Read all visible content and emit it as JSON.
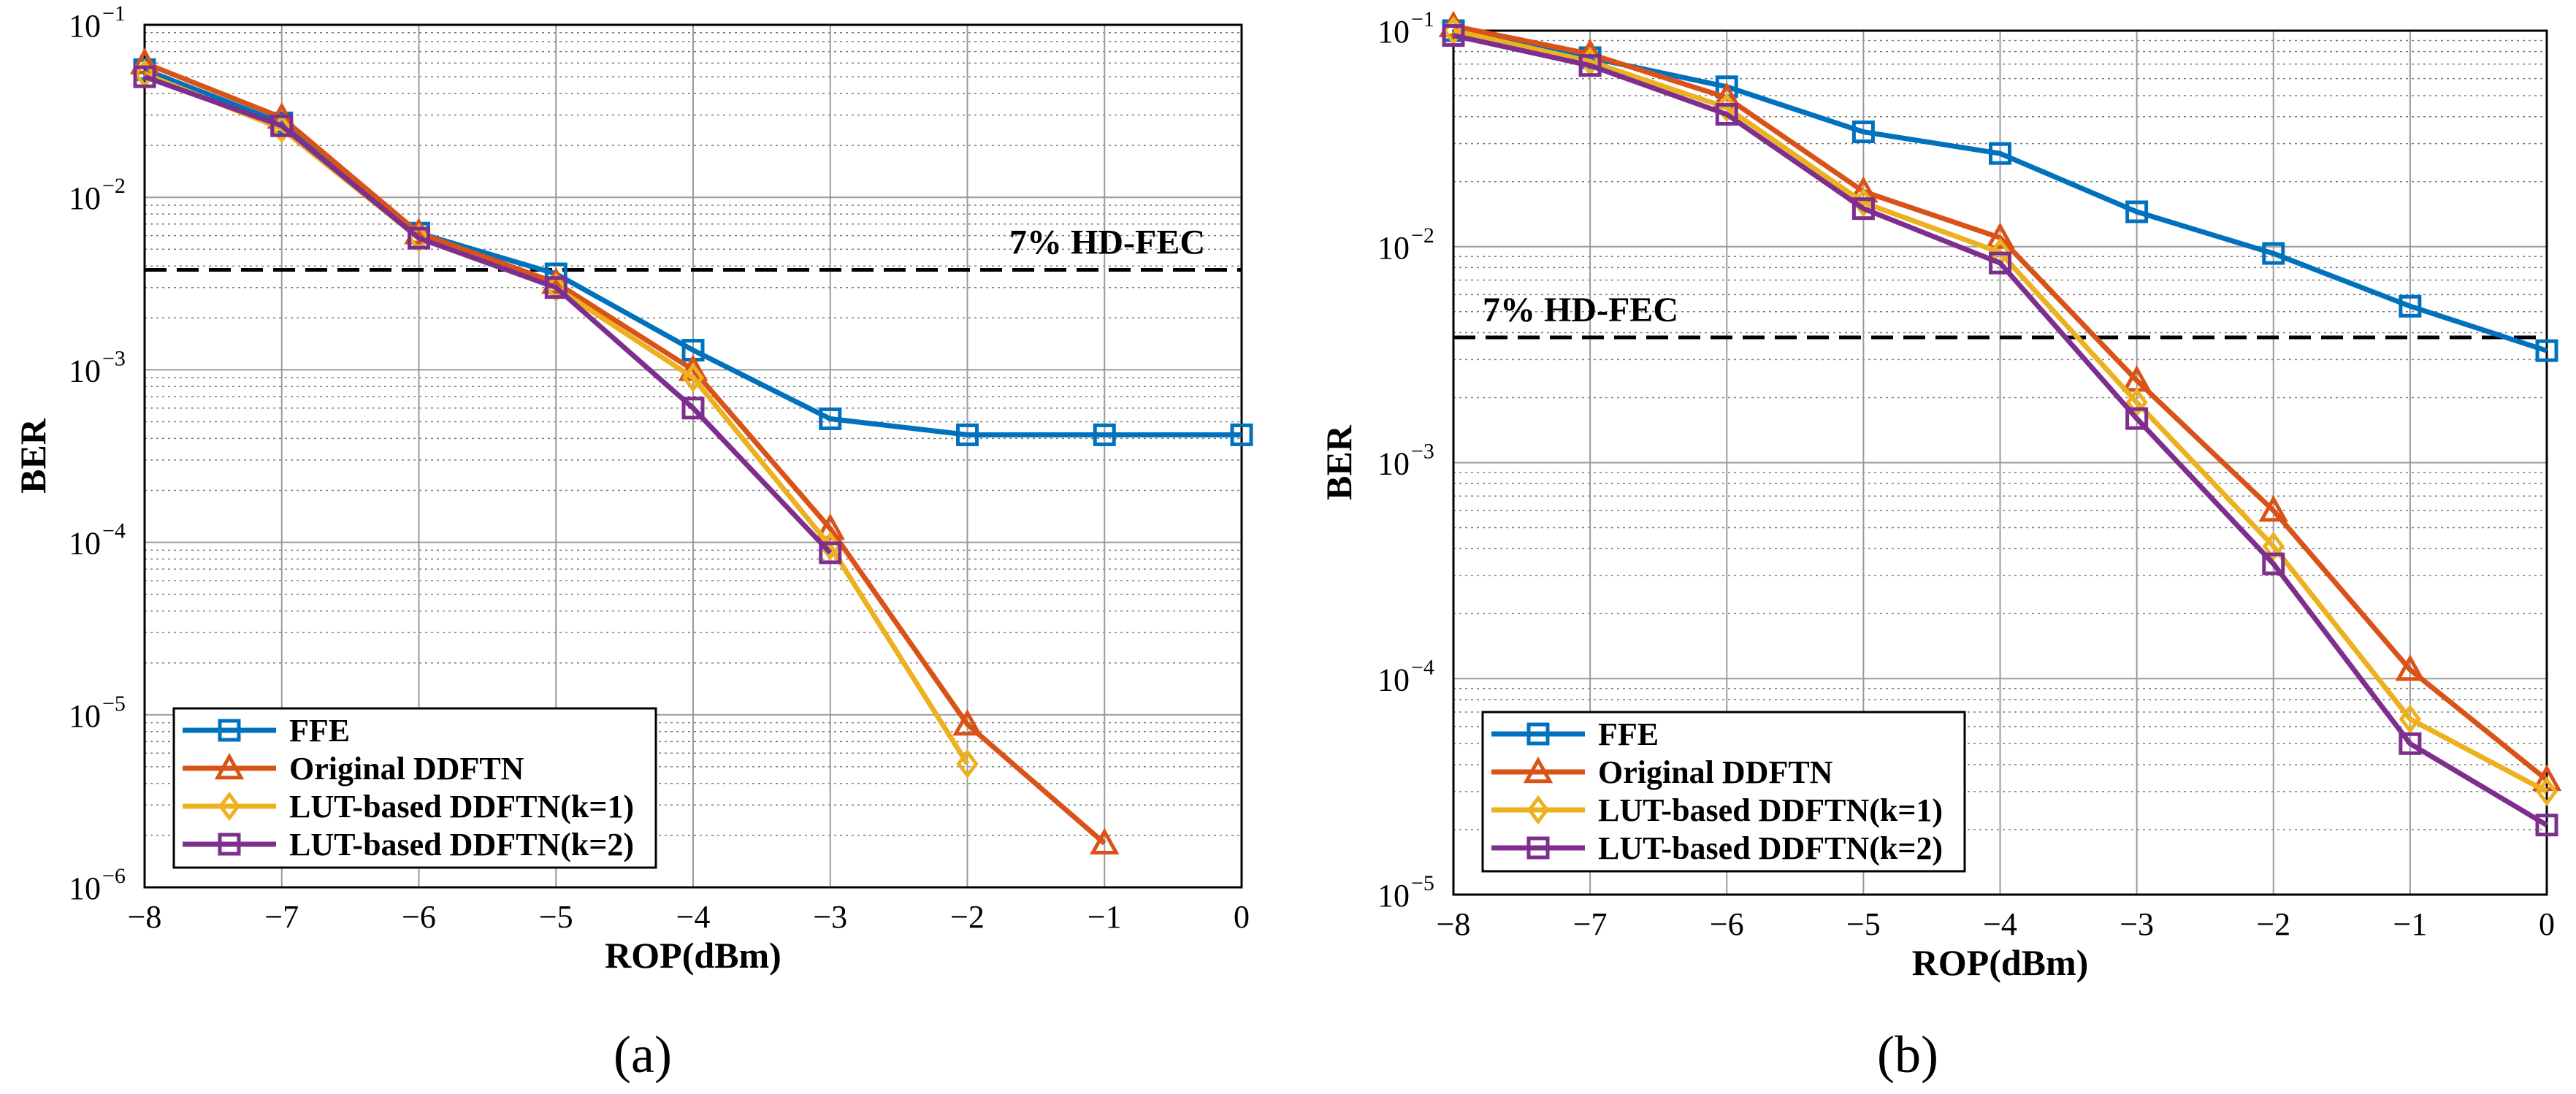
{
  "figure": {
    "captions": [
      "(a)",
      "(b)"
    ]
  },
  "colors": {
    "ffe": "#0072BD",
    "original": "#D95319",
    "lut_k1": "#EDB120",
    "lut_k2": "#7E2F8E",
    "threshold": "#000000"
  },
  "chart_data": [
    {
      "type": "line",
      "panel": "(a)",
      "xlabel": "ROP(dBm)",
      "ylabel": "BER",
      "yscale": "log",
      "xlim": [
        -8,
        0
      ],
      "ylim": [
        1e-06,
        0.1
      ],
      "grid": true,
      "xticks": [
        -8,
        -7,
        -6,
        -5,
        -4,
        -3,
        -2,
        -1,
        0
      ],
      "xtick_labels": [
        "−8",
        "−7",
        "−6",
        "−5",
        "−4",
        "−3",
        "−2",
        "−1",
        "0"
      ],
      "yticks": [
        1e-06,
        1e-05,
        0.0001,
        0.001,
        0.01,
        0.1
      ],
      "ytick_labels": [
        {
          "base": "10",
          "exp": "−6"
        },
        {
          "base": "10",
          "exp": "−5"
        },
        {
          "base": "10",
          "exp": "−4"
        },
        {
          "base": "10",
          "exp": "−3"
        },
        {
          "base": "10",
          "exp": "−2"
        },
        {
          "base": "10",
          "exp": "−1"
        }
      ],
      "threshold": {
        "label": "7% HD-FEC",
        "value": 0.0038
      },
      "legend_position": "bottom-left",
      "series": [
        {
          "name": "FFE",
          "key": "ffe",
          "marker": "square",
          "x": [
            -8,
            -7,
            -6,
            -5,
            -4,
            -3,
            -2,
            -1,
            0
          ],
          "y": [
            0.055,
            0.027,
            0.0062,
            0.0036,
            0.0013,
            0.00052,
            0.00042,
            0.00042,
            0.00042
          ]
        },
        {
          "name": "Original DDFTN",
          "key": "original",
          "marker": "triangle",
          "x": [
            -8,
            -7,
            -6,
            -5,
            -4,
            -3,
            -2,
            -1
          ],
          "y": [
            0.06,
            0.029,
            0.0062,
            0.0032,
            0.001,
            0.00012,
            8.8e-06,
            1.8e-06
          ]
        },
        {
          "name": "LUT-based DDFTN(k=1)",
          "key": "lut_k1",
          "marker": "diamond",
          "x": [
            -8,
            -7,
            -6,
            -5,
            -4,
            -3,
            -2
          ],
          "y": [
            0.052,
            0.025,
            0.0058,
            0.003,
            0.0009,
            9.5e-05,
            5.2e-06
          ]
        },
        {
          "name": "LUT-based DDFTN(k=2)",
          "key": "lut_k2",
          "marker": "square",
          "x": [
            -8,
            -7,
            -6,
            -5,
            -4,
            -3
          ],
          "y": [
            0.05,
            0.026,
            0.0058,
            0.003,
            0.0006,
            8.7e-05
          ]
        }
      ]
    },
    {
      "type": "line",
      "panel": "(b)",
      "xlabel": "ROP(dBm)",
      "ylabel": "BER",
      "yscale": "log",
      "xlim": [
        -8,
        0
      ],
      "ylim": [
        1e-05,
        0.1
      ],
      "grid": true,
      "xticks": [
        -8,
        -7,
        -6,
        -5,
        -4,
        -3,
        -2,
        -1,
        0
      ],
      "xtick_labels": [
        "−8",
        "−7",
        "−6",
        "−5",
        "−4",
        "−3",
        "−2",
        "−1",
        "0"
      ],
      "yticks": [
        1e-05,
        0.0001,
        0.001,
        0.01,
        0.1
      ],
      "ytick_labels": [
        {
          "base": "10",
          "exp": "−5"
        },
        {
          "base": "10",
          "exp": "−4"
        },
        {
          "base": "10",
          "exp": "−3"
        },
        {
          "base": "10",
          "exp": "−2"
        },
        {
          "base": "10",
          "exp": "−1"
        }
      ],
      "threshold": {
        "label": "7% HD-FEC",
        "value": 0.0038
      },
      "legend_position": "bottom-left",
      "series": [
        {
          "name": "FFE",
          "key": "ffe",
          "marker": "square",
          "x": [
            -8,
            -7,
            -6,
            -5,
            -4,
            -3,
            -2,
            -1,
            0
          ],
          "y": [
            0.1,
            0.075,
            0.055,
            0.034,
            0.027,
            0.0145,
            0.0093,
            0.0053,
            0.0033
          ]
        },
        {
          "name": "Original DDFTN",
          "key": "original",
          "marker": "triangle",
          "x": [
            -8,
            -7,
            -6,
            -5,
            -4,
            -3,
            -2,
            -1,
            0
          ],
          "y": [
            0.105,
            0.078,
            0.049,
            0.018,
            0.011,
            0.0024,
            0.0006,
            0.00011,
            3.4e-05
          ]
        },
        {
          "name": "LUT-based DDFTN(k=1)",
          "key": "lut_k1",
          "marker": "diamond",
          "x": [
            -8,
            -7,
            -6,
            -5,
            -4,
            -3,
            -2,
            -1,
            0
          ],
          "y": [
            0.1,
            0.072,
            0.044,
            0.016,
            0.0094,
            0.0019,
            0.00041,
            6.5e-05,
            3e-05
          ]
        },
        {
          "name": "LUT-based DDFTN(k=2)",
          "key": "lut_k2",
          "marker": "square",
          "x": [
            -8,
            -7,
            -6,
            -5,
            -4,
            -3,
            -2,
            -1,
            0
          ],
          "y": [
            0.095,
            0.069,
            0.041,
            0.015,
            0.0084,
            0.0016,
            0.00034,
            5e-05,
            2.1e-05
          ]
        }
      ]
    }
  ]
}
